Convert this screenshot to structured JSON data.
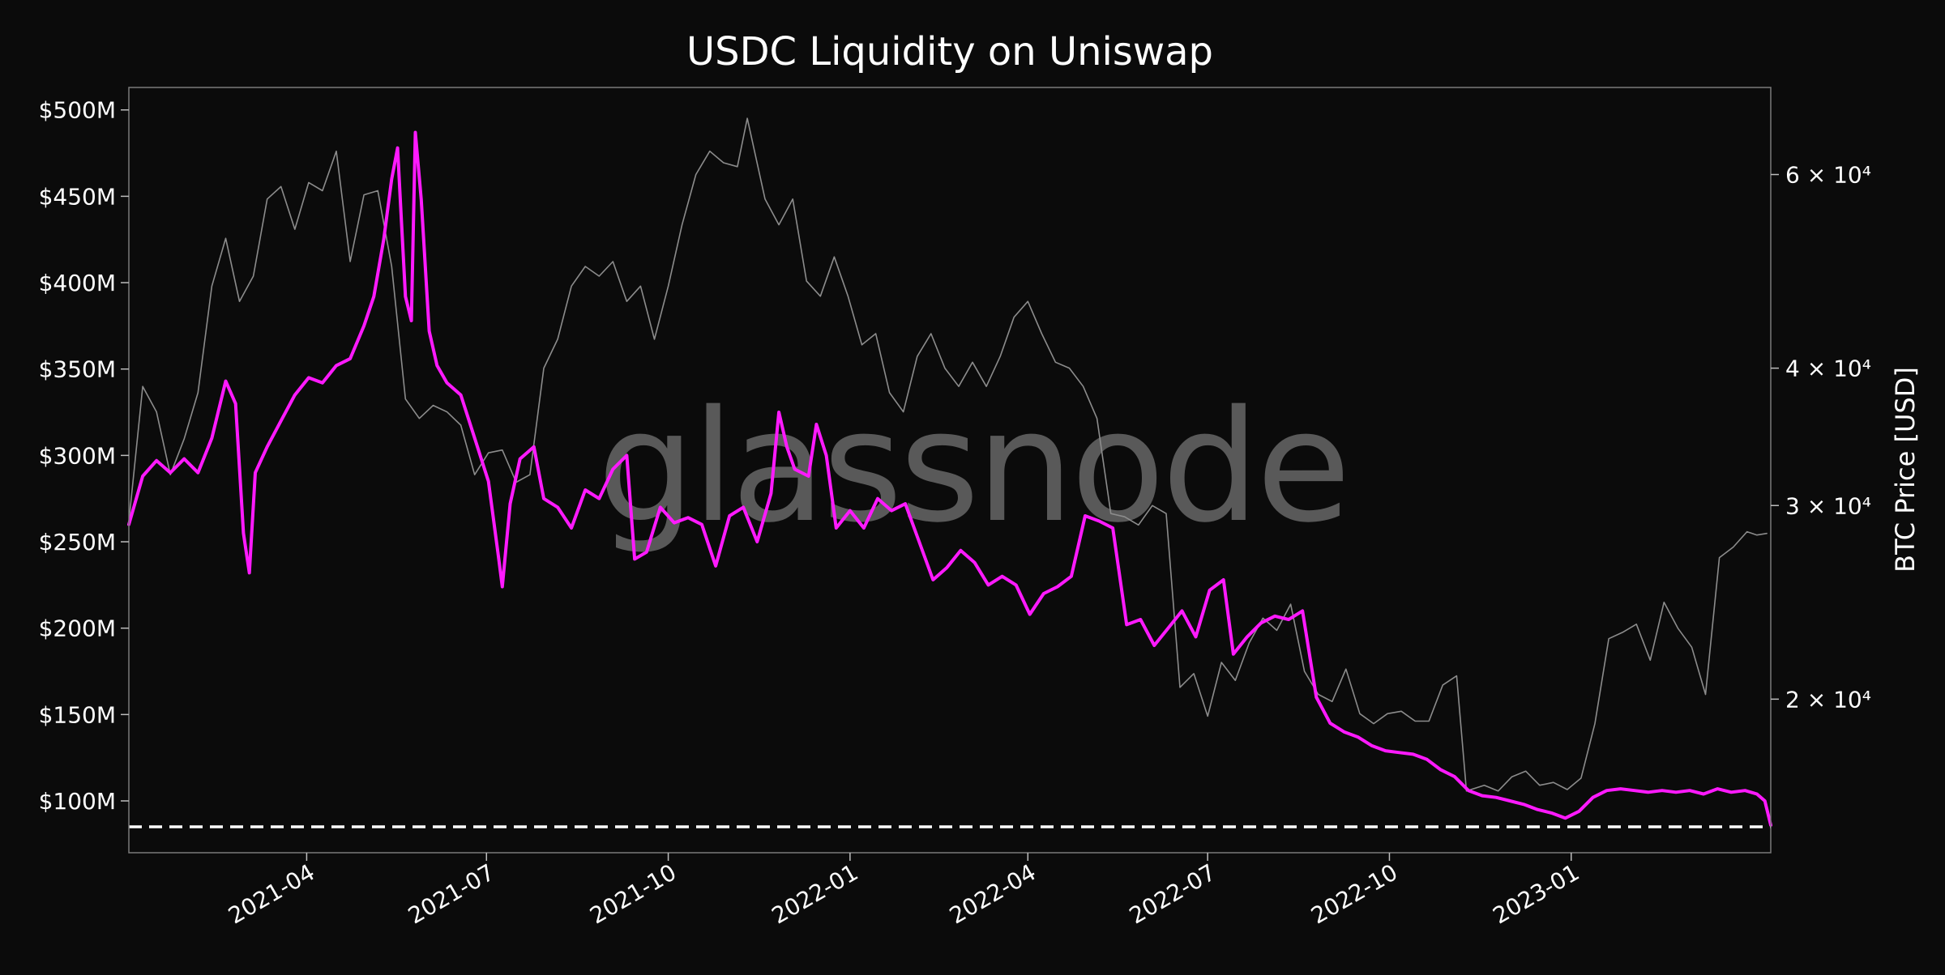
{
  "chart_data": {
    "type": "line",
    "title": "USDC Liquidity on Uniswap",
    "watermark": "glassnode",
    "y_left": {
      "label": "",
      "ylim": [
        70,
        513
      ],
      "ticks": [
        {
          "value": 100,
          "label": "$100M"
        },
        {
          "value": 150,
          "label": "$150M"
        },
        {
          "value": 200,
          "label": "$200M"
        },
        {
          "value": 250,
          "label": "$250M"
        },
        {
          "value": 300,
          "label": "$300M"
        },
        {
          "value": 350,
          "label": "$350M"
        },
        {
          "value": 400,
          "label": "$400M"
        },
        {
          "value": 450,
          "label": "$450M"
        },
        {
          "value": 500,
          "label": "$500M"
        }
      ]
    },
    "y_right": {
      "label": "BTC Price [USD]",
      "scale": "log",
      "ylim": [
        14500,
        72000
      ],
      "ticks": [
        {
          "value": 20000,
          "label": "2 × 10⁴"
        },
        {
          "value": 30000,
          "label": "3 × 10⁴"
        },
        {
          "value": 40000,
          "label": "4 × 10⁴"
        },
        {
          "value": 60000,
          "label": "6 × 10⁴"
        }
      ]
    },
    "x_axis": {
      "range": [
        "2021-01-01",
        "2023-04-12"
      ],
      "ticks": [
        {
          "date": "2021-04-01",
          "label": "2021-04"
        },
        {
          "date": "2021-07-01",
          "label": "2021-07"
        },
        {
          "date": "2021-10-01",
          "label": "2021-10"
        },
        {
          "date": "2022-01-01",
          "label": "2022-01"
        },
        {
          "date": "2022-04-01",
          "label": "2022-04"
        },
        {
          "date": "2022-07-01",
          "label": "2022-07"
        },
        {
          "date": "2022-10-01",
          "label": "2022-10"
        },
        {
          "date": "2023-01-01",
          "label": "2023-01"
        }
      ]
    },
    "reference_line": {
      "value": 85,
      "style": "dashed",
      "color": "#ffffff"
    },
    "grid": false,
    "series": [
      {
        "name": "",
        "axis": "right",
        "color": "#8c8c8c",
        "points": [
          [
            "2021-01-01",
            29000
          ],
          [
            "2021-01-08",
            38500
          ],
          [
            "2021-01-15",
            36500
          ],
          [
            "2021-01-22",
            32000
          ],
          [
            "2021-01-29",
            34500
          ],
          [
            "2021-02-05",
            38000
          ],
          [
            "2021-02-12",
            47500
          ],
          [
            "2021-02-19",
            52500
          ],
          [
            "2021-02-26",
            46000
          ],
          [
            "2021-03-05",
            48500
          ],
          [
            "2021-03-12",
            57000
          ],
          [
            "2021-03-19",
            58500
          ],
          [
            "2021-03-26",
            53500
          ],
          [
            "2021-04-02",
            59000
          ],
          [
            "2021-04-09",
            58000
          ],
          [
            "2021-04-16",
            63000
          ],
          [
            "2021-04-23",
            50000
          ],
          [
            "2021-04-30",
            57500
          ],
          [
            "2021-05-07",
            58000
          ],
          [
            "2021-05-14",
            49500
          ],
          [
            "2021-05-21",
            37500
          ],
          [
            "2021-05-28",
            36000
          ],
          [
            "2021-06-04",
            37000
          ],
          [
            "2021-06-11",
            36500
          ],
          [
            "2021-06-18",
            35500
          ],
          [
            "2021-06-25",
            32000
          ],
          [
            "2021-07-02",
            33500
          ],
          [
            "2021-07-09",
            33700
          ],
          [
            "2021-07-16",
            31500
          ],
          [
            "2021-07-23",
            32000
          ],
          [
            "2021-07-30",
            40000
          ],
          [
            "2021-08-06",
            42500
          ],
          [
            "2021-08-13",
            47500
          ],
          [
            "2021-08-20",
            49500
          ],
          [
            "2021-08-27",
            48500
          ],
          [
            "2021-09-03",
            50000
          ],
          [
            "2021-09-10",
            46000
          ],
          [
            "2021-09-17",
            47500
          ],
          [
            "2021-09-24",
            42500
          ],
          [
            "2021-10-01",
            47500
          ],
          [
            "2021-10-08",
            54000
          ],
          [
            "2021-10-15",
            60000
          ],
          [
            "2021-10-22",
            63000
          ],
          [
            "2021-10-29",
            61500
          ],
          [
            "2021-11-05",
            61000
          ],
          [
            "2021-11-10",
            67500
          ],
          [
            "2021-11-19",
            57000
          ],
          [
            "2021-11-26",
            54000
          ],
          [
            "2021-12-03",
            57000
          ],
          [
            "2021-12-10",
            48000
          ],
          [
            "2021-12-17",
            46500
          ],
          [
            "2021-12-24",
            50500
          ],
          [
            "2021-12-31",
            46500
          ],
          [
            "2022-01-07",
            42000
          ],
          [
            "2022-01-14",
            43000
          ],
          [
            "2022-01-21",
            38000
          ],
          [
            "2022-01-28",
            36500
          ],
          [
            "2022-02-04",
            41000
          ],
          [
            "2022-02-11",
            43000
          ],
          [
            "2022-02-18",
            40000
          ],
          [
            "2022-02-25",
            38500
          ],
          [
            "2022-03-04",
            40500
          ],
          [
            "2022-03-11",
            38500
          ],
          [
            "2022-03-18",
            41000
          ],
          [
            "2022-03-25",
            44500
          ],
          [
            "2022-04-01",
            46000
          ],
          [
            "2022-04-08",
            43000
          ],
          [
            "2022-04-15",
            40500
          ],
          [
            "2022-04-22",
            40000
          ],
          [
            "2022-04-29",
            38500
          ],
          [
            "2022-05-06",
            36000
          ],
          [
            "2022-05-13",
            29500
          ],
          [
            "2022-05-20",
            29300
          ],
          [
            "2022-05-27",
            28800
          ],
          [
            "2022-06-03",
            30000
          ],
          [
            "2022-06-10",
            29500
          ],
          [
            "2022-06-17",
            20500
          ],
          [
            "2022-06-24",
            21100
          ],
          [
            "2022-07-01",
            19300
          ],
          [
            "2022-07-08",
            21600
          ],
          [
            "2022-07-15",
            20800
          ],
          [
            "2022-07-22",
            22500
          ],
          [
            "2022-07-29",
            23700
          ],
          [
            "2022-08-05",
            23100
          ],
          [
            "2022-08-12",
            24400
          ],
          [
            "2022-08-19",
            21200
          ],
          [
            "2022-08-26",
            20200
          ],
          [
            "2022-09-02",
            19900
          ],
          [
            "2022-09-09",
            21300
          ],
          [
            "2022-09-16",
            19400
          ],
          [
            "2022-09-23",
            19000
          ],
          [
            "2022-09-30",
            19400
          ],
          [
            "2022-10-07",
            19500
          ],
          [
            "2022-10-14",
            19100
          ],
          [
            "2022-10-21",
            19100
          ],
          [
            "2022-10-28",
            20600
          ],
          [
            "2022-11-04",
            21000
          ],
          [
            "2022-11-09",
            16500
          ],
          [
            "2022-11-18",
            16700
          ],
          [
            "2022-11-25",
            16500
          ],
          [
            "2022-12-02",
            17000
          ],
          [
            "2022-12-09",
            17200
          ],
          [
            "2022-12-16",
            16700
          ],
          [
            "2022-12-23",
            16800
          ],
          [
            "2022-12-30",
            16550
          ],
          [
            "2023-01-06",
            16950
          ],
          [
            "2023-01-13",
            19000
          ],
          [
            "2023-01-20",
            22700
          ],
          [
            "2023-01-27",
            23000
          ],
          [
            "2023-02-03",
            23400
          ],
          [
            "2023-02-10",
            21700
          ],
          [
            "2023-02-17",
            24500
          ],
          [
            "2023-02-24",
            23200
          ],
          [
            "2023-03-03",
            22300
          ],
          [
            "2023-03-10",
            20200
          ],
          [
            "2023-03-17",
            26900
          ],
          [
            "2023-03-24",
            27500
          ],
          [
            "2023-03-31",
            28400
          ],
          [
            "2023-04-05",
            28200
          ],
          [
            "2023-04-10",
            28300
          ]
        ]
      },
      {
        "name": "",
        "axis": "left",
        "color": "#ff1aff",
        "points": [
          [
            "2021-01-01",
            260
          ],
          [
            "2021-01-08",
            288
          ],
          [
            "2021-01-15",
            297
          ],
          [
            "2021-01-22",
            290
          ],
          [
            "2021-01-29",
            298
          ],
          [
            "2021-02-05",
            290
          ],
          [
            "2021-02-12",
            310
          ],
          [
            "2021-02-19",
            343
          ],
          [
            "2021-02-24",
            330
          ],
          [
            "2021-02-28",
            255
          ],
          [
            "2021-03-03",
            232
          ],
          [
            "2021-03-06",
            290
          ],
          [
            "2021-03-12",
            305
          ],
          [
            "2021-03-19",
            320
          ],
          [
            "2021-03-26",
            335
          ],
          [
            "2021-04-02",
            345
          ],
          [
            "2021-04-09",
            342
          ],
          [
            "2021-04-16",
            352
          ],
          [
            "2021-04-23",
            356
          ],
          [
            "2021-04-30",
            375
          ],
          [
            "2021-05-05",
            392
          ],
          [
            "2021-05-10",
            425
          ],
          [
            "2021-05-14",
            460
          ],
          [
            "2021-05-17",
            478
          ],
          [
            "2021-05-19",
            435
          ],
          [
            "2021-05-21",
            392
          ],
          [
            "2021-05-24",
            378
          ],
          [
            "2021-05-26",
            487
          ],
          [
            "2021-05-29",
            448
          ],
          [
            "2021-06-02",
            372
          ],
          [
            "2021-06-06",
            352
          ],
          [
            "2021-06-11",
            342
          ],
          [
            "2021-06-18",
            335
          ],
          [
            "2021-06-25",
            310
          ],
          [
            "2021-07-02",
            285
          ],
          [
            "2021-07-07",
            242
          ],
          [
            "2021-07-09",
            224
          ],
          [
            "2021-07-13",
            272
          ],
          [
            "2021-07-18",
            298
          ],
          [
            "2021-07-25",
            305
          ],
          [
            "2021-07-30",
            275
          ],
          [
            "2021-08-06",
            270
          ],
          [
            "2021-08-13",
            258
          ],
          [
            "2021-08-20",
            280
          ],
          [
            "2021-08-27",
            275
          ],
          [
            "2021-09-03",
            292
          ],
          [
            "2021-09-10",
            300
          ],
          [
            "2021-09-14",
            240
          ],
          [
            "2021-09-20",
            244
          ],
          [
            "2021-09-27",
            270
          ],
          [
            "2021-10-04",
            261
          ],
          [
            "2021-10-11",
            264
          ],
          [
            "2021-10-18",
            260
          ],
          [
            "2021-10-25",
            236
          ],
          [
            "2021-11-01",
            265
          ],
          [
            "2021-11-08",
            270
          ],
          [
            "2021-11-15",
            250
          ],
          [
            "2021-11-22",
            278
          ],
          [
            "2021-11-26",
            325
          ],
          [
            "2021-11-30",
            305
          ],
          [
            "2021-12-04",
            292
          ],
          [
            "2021-12-11",
            288
          ],
          [
            "2021-12-15",
            318
          ],
          [
            "2021-12-20",
            300
          ],
          [
            "2021-12-25",
            258
          ],
          [
            "2022-01-01",
            268
          ],
          [
            "2022-01-08",
            258
          ],
          [
            "2022-01-15",
            275
          ],
          [
            "2022-01-22",
            268
          ],
          [
            "2022-01-29",
            272
          ],
          [
            "2022-02-05",
            250
          ],
          [
            "2022-02-12",
            228
          ],
          [
            "2022-02-19",
            235
          ],
          [
            "2022-02-26",
            245
          ],
          [
            "2022-03-05",
            238
          ],
          [
            "2022-03-12",
            225
          ],
          [
            "2022-03-19",
            230
          ],
          [
            "2022-03-26",
            225
          ],
          [
            "2022-04-02",
            208
          ],
          [
            "2022-04-09",
            220
          ],
          [
            "2022-04-16",
            224
          ],
          [
            "2022-04-23",
            230
          ],
          [
            "2022-04-30",
            265
          ],
          [
            "2022-05-07",
            262
          ],
          [
            "2022-05-14",
            258
          ],
          [
            "2022-05-21",
            202
          ],
          [
            "2022-05-28",
            205
          ],
          [
            "2022-06-04",
            190
          ],
          [
            "2022-06-11",
            200
          ],
          [
            "2022-06-18",
            210
          ],
          [
            "2022-06-25",
            195
          ],
          [
            "2022-07-02",
            222
          ],
          [
            "2022-07-09",
            228
          ],
          [
            "2022-07-14",
            185
          ],
          [
            "2022-07-21",
            195
          ],
          [
            "2022-07-28",
            203
          ],
          [
            "2022-08-04",
            207
          ],
          [
            "2022-08-11",
            205
          ],
          [
            "2022-08-18",
            210
          ],
          [
            "2022-08-25",
            160
          ],
          [
            "2022-09-01",
            145
          ],
          [
            "2022-09-08",
            140
          ],
          [
            "2022-09-15",
            137
          ],
          [
            "2022-09-22",
            132
          ],
          [
            "2022-09-29",
            129
          ],
          [
            "2022-10-06",
            128
          ],
          [
            "2022-10-13",
            127
          ],
          [
            "2022-10-20",
            124
          ],
          [
            "2022-10-27",
            118
          ],
          [
            "2022-11-03",
            114
          ],
          [
            "2022-11-10",
            106
          ],
          [
            "2022-11-17",
            103
          ],
          [
            "2022-11-24",
            102
          ],
          [
            "2022-12-01",
            100
          ],
          [
            "2022-12-08",
            98
          ],
          [
            "2022-12-15",
            95
          ],
          [
            "2022-12-22",
            93
          ],
          [
            "2022-12-29",
            90
          ],
          [
            "2023-01-05",
            94
          ],
          [
            "2023-01-12",
            102
          ],
          [
            "2023-01-19",
            106
          ],
          [
            "2023-01-26",
            107
          ],
          [
            "2023-02-02",
            106
          ],
          [
            "2023-02-09",
            105
          ],
          [
            "2023-02-16",
            106
          ],
          [
            "2023-02-23",
            105
          ],
          [
            "2023-03-02",
            106
          ],
          [
            "2023-03-09",
            104
          ],
          [
            "2023-03-16",
            107
          ],
          [
            "2023-03-23",
            105
          ],
          [
            "2023-03-30",
            106
          ],
          [
            "2023-04-05",
            104
          ],
          [
            "2023-04-09",
            100
          ],
          [
            "2023-04-12",
            86
          ]
        ]
      }
    ]
  }
}
